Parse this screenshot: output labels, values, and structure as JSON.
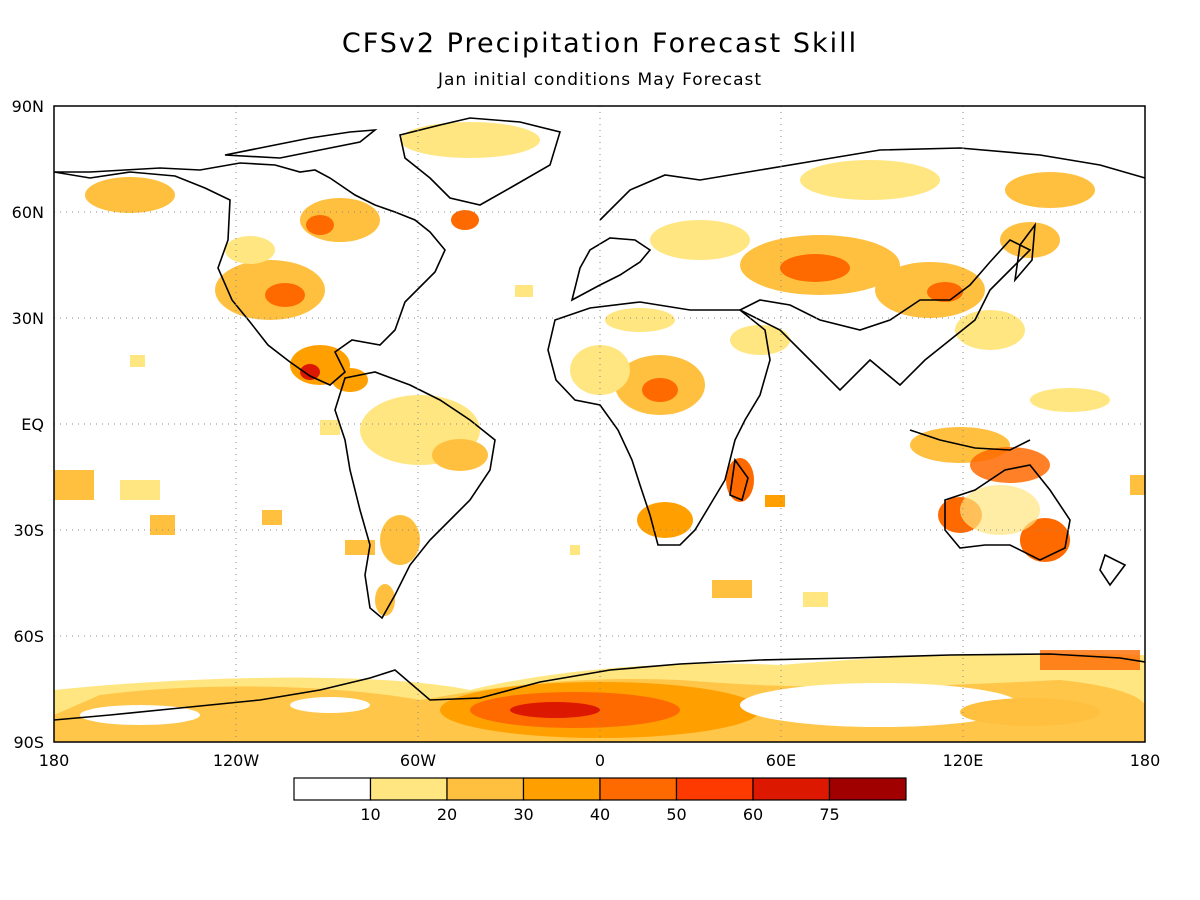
{
  "title": "CFSv2 Precipitation Forecast Skill",
  "subtitle": "Jan initial conditions   May Forecast",
  "map": {
    "lat_labels": [
      "90N",
      "60N",
      "30N",
      "EQ",
      "30S",
      "60S",
      "90S"
    ],
    "lon_labels": [
      "180",
      "120W",
      "60W",
      "0",
      "60E",
      "120E",
      "180"
    ],
    "grid": "dotted"
  },
  "colorbar": {
    "colors": [
      "#ffffff",
      "#ffe680",
      "#ffc040",
      "#ffa000",
      "#ff6a00",
      "#ff3a00",
      "#dd1800",
      "#a00000"
    ],
    "labels": [
      "10",
      "20",
      "30",
      "40",
      "50",
      "60",
      "75"
    ]
  }
}
